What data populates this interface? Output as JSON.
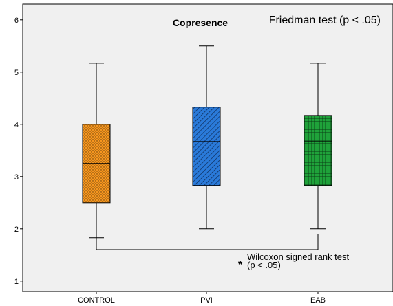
{
  "chart_data": {
    "type": "boxplot",
    "title": "Copresence",
    "annotation": "Friedman test (p < .05)",
    "categories": [
      "CONTROL",
      "PVI",
      "EAB"
    ],
    "ylim": [
      0.8,
      6.3
    ],
    "y_ticks": [
      "1",
      "2",
      "3",
      "4",
      "5",
      "6"
    ],
    "grid": false,
    "boxes": [
      {
        "name": "CONTROL",
        "min": 1.83,
        "q1": 2.5,
        "median": 3.25,
        "q3": 4.0,
        "max": 5.17,
        "color": "#f7961e",
        "pattern": "dots"
      },
      {
        "name": "PVI",
        "min": 2.0,
        "q1": 2.83,
        "median": 3.67,
        "q3": 4.33,
        "max": 5.5,
        "color": "#2a7ad9",
        "pattern": "diagonal"
      },
      {
        "name": "EAB",
        "min": 2.0,
        "q1": 2.83,
        "median": 3.67,
        "q3": 4.17,
        "max": 5.17,
        "color": "#1fa23a",
        "pattern": "grid"
      }
    ],
    "comparison": {
      "from": "CONTROL",
      "to": "EAB",
      "star": "*",
      "label_line1": "Wilcoxon signed rank test",
      "label_line2": "(p < .05)"
    }
  }
}
